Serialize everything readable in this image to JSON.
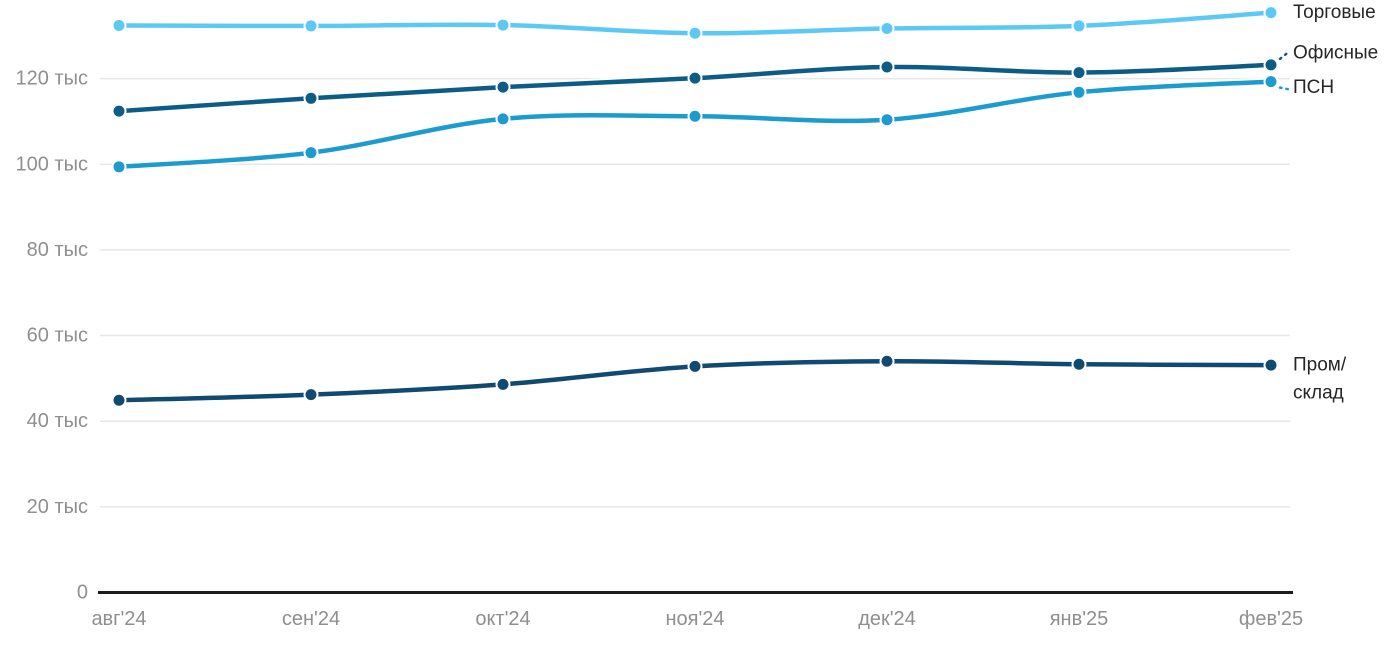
{
  "chart_data": {
    "type": "line",
    "title": "",
    "x_label": "",
    "y_label": "",
    "unit": "тыс",
    "grid": "horizontal",
    "legend_position": "inline-right-end-labels",
    "x_categories": [
      "авг'24",
      "сен'24",
      "окт'24",
      "ноя'24",
      "дек'24",
      "янв'25",
      "фев'25"
    ],
    "y_ticks": [
      {
        "value": 0,
        "label": "0"
      },
      {
        "value": 20,
        "label": "20 тыс"
      },
      {
        "value": 40,
        "label": "40 тыс"
      },
      {
        "value": 60,
        "label": "60 тыс"
      },
      {
        "value": 80,
        "label": "80 тыс"
      },
      {
        "value": 100,
        "label": "100 тыс"
      },
      {
        "value": 120,
        "label": "120 тыс"
      }
    ],
    "ylim": [
      0,
      137
    ],
    "series": [
      {
        "key": "torgovye",
        "name": "Торговые",
        "label_lines": [
          "Торговые"
        ],
        "color": "#5cc9f5",
        "connector": false,
        "values": [
          132.4,
          132.3,
          132.5,
          130.6,
          131.7,
          132.3,
          135.4
        ]
      },
      {
        "key": "ofisnye",
        "name": "Офисные",
        "label_lines": [
          "Офисные"
        ],
        "color": "#0d5c86",
        "connector": true,
        "values": [
          112.4,
          115.4,
          118.0,
          120.1,
          122.7,
          121.4,
          123.2
        ]
      },
      {
        "key": "psn",
        "name": "ПСН",
        "label_lines": [
          "ПСН"
        ],
        "color": "#1b9bce",
        "connector": true,
        "values": [
          99.4,
          102.7,
          110.6,
          111.2,
          110.4,
          116.8,
          119.3
        ]
      },
      {
        "key": "prom-sklad",
        "name": "Пром/склад",
        "label_lines": [
          "Пром/",
          "склад"
        ],
        "color": "#104a73",
        "connector": false,
        "values": [
          44.9,
          46.2,
          48.6,
          52.8,
          54.0,
          53.3,
          53.1
        ]
      }
    ]
  },
  "style": {
    "background": "#ffffff",
    "grid_color": "#e7e7e7",
    "axis_color": "#1c1c1c",
    "tick_label_color": "#8f8f8f",
    "series_label_color": "#262626"
  }
}
